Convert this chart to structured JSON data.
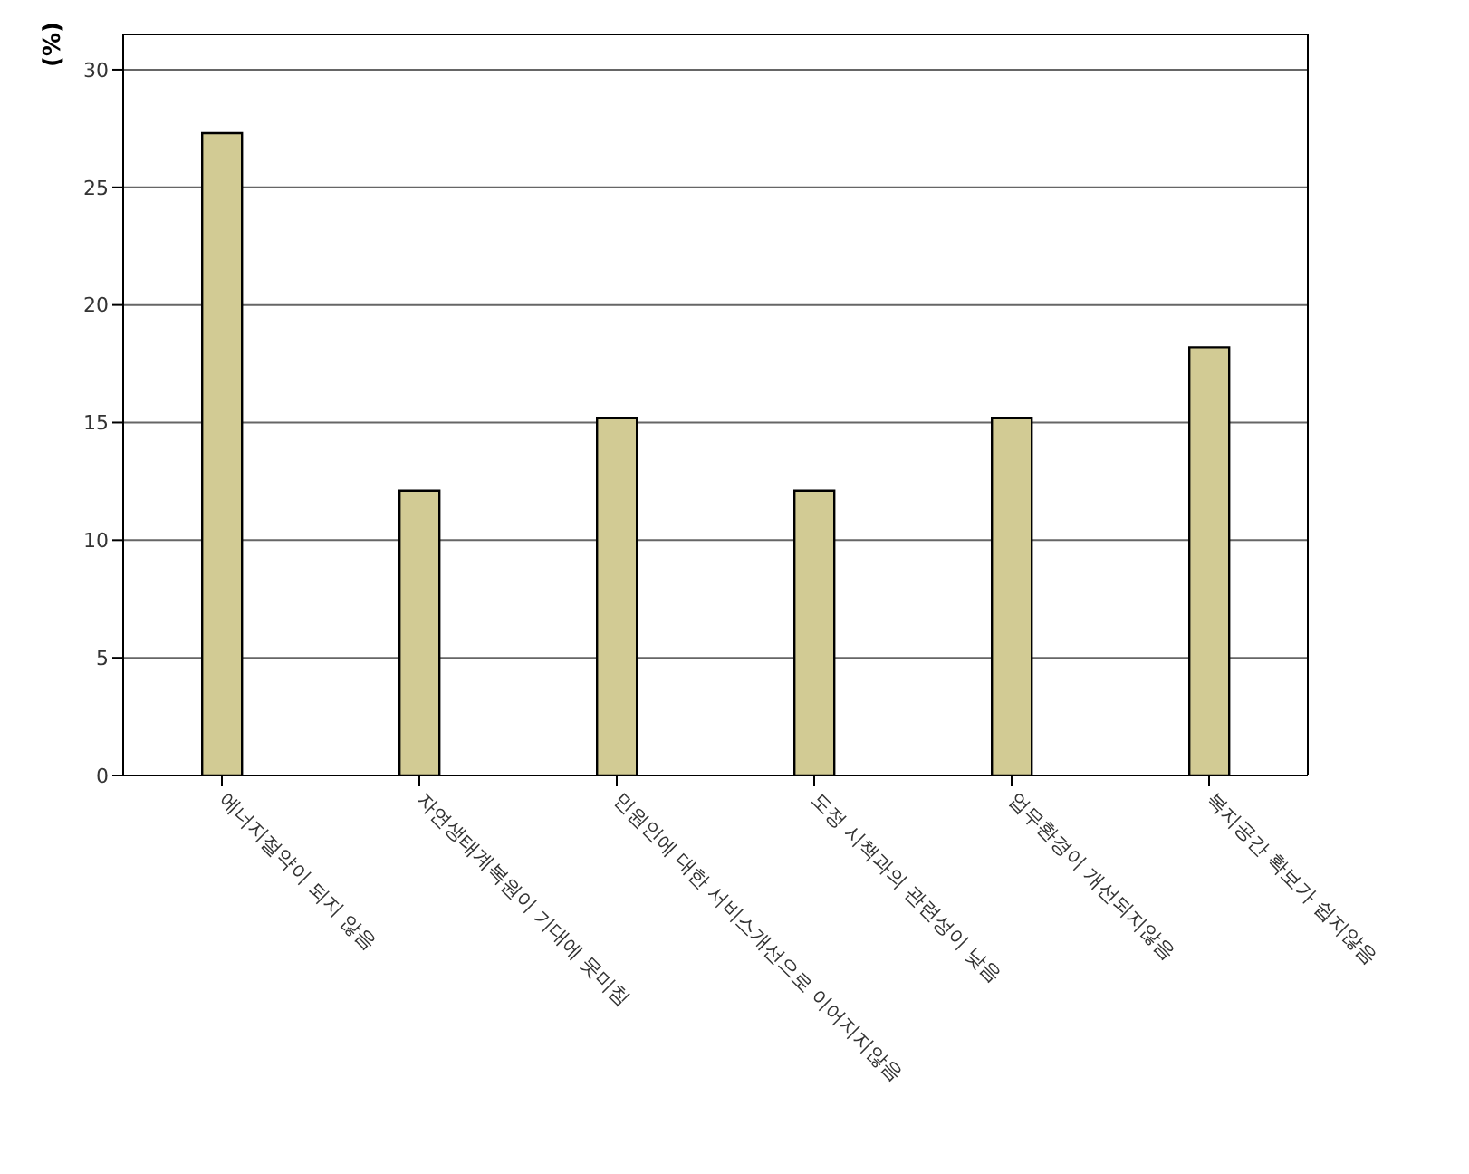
{
  "chart_data": {
    "type": "bar",
    "ylabel": "(%)",
    "categories": [
      "에너지절약이 되지 않음",
      "자연생태계복원이 기대에 못미침",
      "민원인에 대한 서비스개선으로 이어지지않음",
      "도정 시책과의 관련성이 낮음",
      "업무환경이 개선되지않음",
      "복지공간 확보가 쉽지않음"
    ],
    "values": [
      27.3,
      12.1,
      15.2,
      12.1,
      15.2,
      18.2
    ],
    "color": "#d2cb94",
    "ylim": [
      0,
      31.5
    ],
    "yticks": [
      0,
      5,
      10,
      15,
      20,
      25,
      30
    ],
    "grid": "y"
  }
}
